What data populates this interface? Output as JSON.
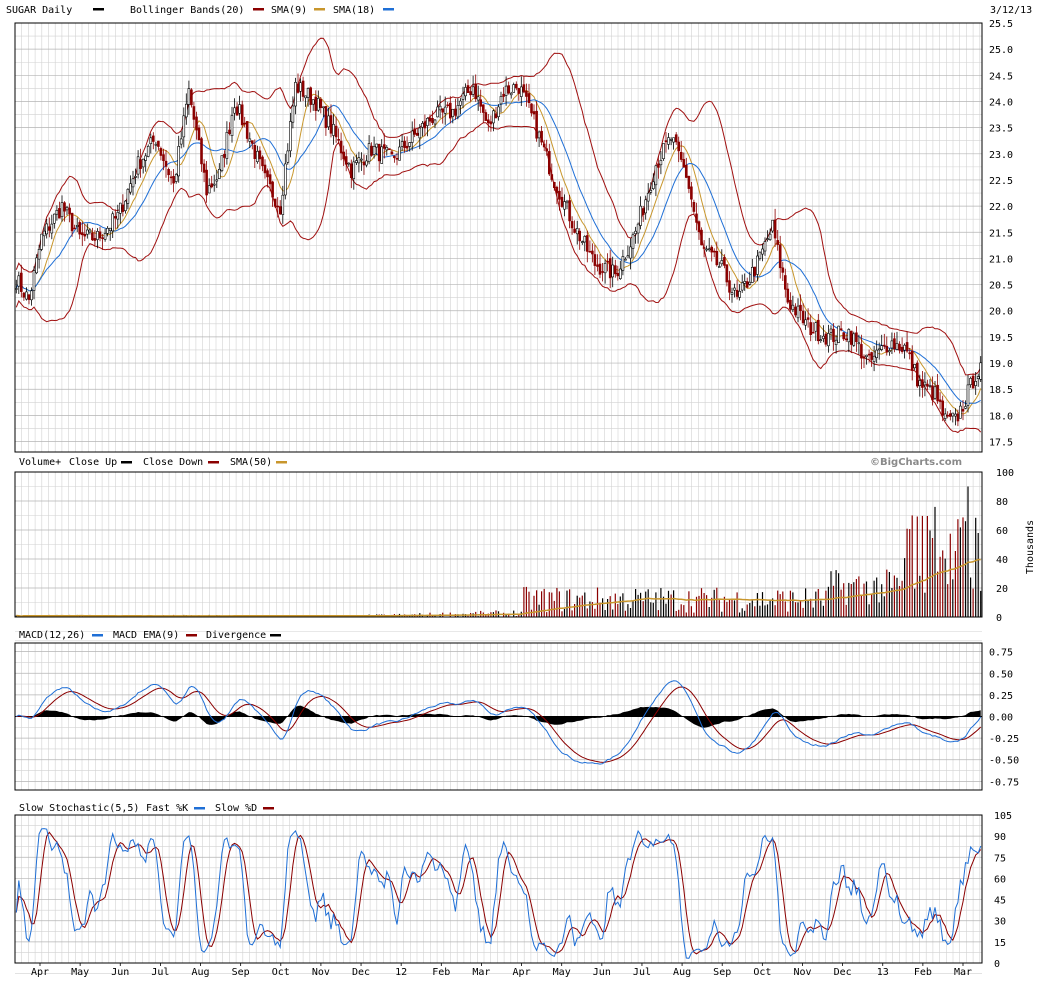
{
  "header": {
    "symbol_label": "SUGAR Daily",
    "date": "3/12/13",
    "bollinger_label": "Bollinger Bands(20)",
    "sma9_label": "SMA(9)",
    "sma18_label": "SMA(18)"
  },
  "volume_header": {
    "label": "Volume+",
    "close_up_label": "Close Up",
    "close_down_label": "Close Down",
    "sma50_label": "SMA(50)",
    "watermark": "©BigCharts.com",
    "unit_label": "Thousands"
  },
  "macd_header": {
    "label": "MACD(12,26)",
    "ema_label": "MACD EMA(9)",
    "divergence_label": "Divergence"
  },
  "stoch_header": {
    "label": "Slow Stochastic(5,5)",
    "fast_label": "Fast %K",
    "slow_label": "Slow %D"
  },
  "colors": {
    "up": "#000000",
    "down": "#8b0000",
    "bollinger": "#a01010",
    "sma9": "#c8962c",
    "sma18": "#1f6fd6",
    "grid": "#b4b4b4",
    "minor_grid": "#d2d2d2"
  },
  "chart_data": [
    {
      "type": "candlestick",
      "title": "SUGAR Daily",
      "ylim": [
        17.3,
        25.5
      ],
      "y_ticks": [
        "25.5",
        "25.0",
        "24.5",
        "24.0",
        "23.5",
        "23.0",
        "22.5",
        "22.0",
        "21.5",
        "21.0",
        "20.5",
        "20.0",
        "19.5",
        "19.0",
        "18.5",
        "18.0",
        "17.5"
      ],
      "x_ticks": [
        "Apr",
        "May",
        "Jun",
        "Jul",
        "Aug",
        "Sep",
        "Oct",
        "Nov",
        "Dec",
        "12",
        "Feb",
        "Mar",
        "Apr",
        "May",
        "Jun",
        "Jul",
        "Aug",
        "Sep",
        "Oct",
        "Nov",
        "Dec",
        "13",
        "Feb",
        "Mar"
      ],
      "close_keypoints": [
        [
          0,
          20.6
        ],
        [
          5,
          20.2
        ],
        [
          10,
          21.4
        ],
        [
          18,
          22.0
        ],
        [
          25,
          21.4
        ],
        [
          32,
          21.4
        ],
        [
          40,
          21.8
        ],
        [
          48,
          22.8
        ],
        [
          55,
          23.3
        ],
        [
          62,
          22.4
        ],
        [
          68,
          24.2
        ],
        [
          75,
          22.3
        ],
        [
          80,
          22.6
        ],
        [
          86,
          24.0
        ],
        [
          92,
          23.3
        ],
        [
          98,
          22.5
        ],
        [
          104,
          22.0
        ],
        [
          110,
          24.3
        ],
        [
          118,
          24.0
        ],
        [
          124,
          23.5
        ],
        [
          132,
          22.7
        ],
        [
          140,
          23.1
        ],
        [
          148,
          22.9
        ],
        [
          156,
          23.3
        ],
        [
          164,
          23.7
        ],
        [
          172,
          23.8
        ],
        [
          180,
          24.3
        ],
        [
          186,
          23.5
        ],
        [
          192,
          24.2
        ],
        [
          198,
          24.3
        ],
        [
          204,
          23.6
        ],
        [
          212,
          22.5
        ],
        [
          220,
          21.6
        ],
        [
          228,
          20.9
        ],
        [
          236,
          20.7
        ],
        [
          244,
          21.5
        ],
        [
          252,
          22.8
        ],
        [
          258,
          23.3
        ],
        [
          264,
          22.6
        ],
        [
          270,
          21.2
        ],
        [
          278,
          20.8
        ],
        [
          284,
          20.2
        ],
        [
          292,
          20.9
        ],
        [
          298,
          21.6
        ],
        [
          304,
          20.2
        ],
        [
          312,
          19.7
        ],
        [
          320,
          19.5
        ],
        [
          328,
          19.6
        ],
        [
          336,
          19.0
        ],
        [
          344,
          19.4
        ],
        [
          350,
          19.3
        ],
        [
          356,
          18.6
        ],
        [
          362,
          18.4
        ],
        [
          366,
          17.9
        ],
        [
          370,
          17.9
        ],
        [
          374,
          18.3
        ],
        [
          378,
          18.8
        ],
        [
          380,
          18.85
        ]
      ],
      "bollinger_label": "Bollinger Bands(20)",
      "overlays": [
        "SMA(9)",
        "SMA(18)"
      ]
    },
    {
      "type": "bar",
      "title": "Volume+",
      "unit": "Thousands",
      "ylim": [
        0,
        100
      ],
      "y_ticks": [
        "100",
        "80",
        "60",
        "40",
        "20",
        "0"
      ],
      "series_names": [
        "Close Up",
        "Close Down",
        "SMA(50)"
      ],
      "max_value": 90
    },
    {
      "type": "line",
      "title": "MACD(12,26)",
      "ylim": [
        -0.85,
        0.85
      ],
      "y_ticks": [
        "0.75",
        "0.50",
        "0.25",
        "0.00",
        "-0.25",
        "-0.50",
        "-0.75"
      ],
      "series_names": [
        "MACD(12,26)",
        "MACD EMA(9)",
        "Divergence"
      ],
      "range_observed": [
        -0.55,
        0.52
      ]
    },
    {
      "type": "line",
      "title": "Slow Stochastic(5,5)",
      "ylim": [
        0,
        105
      ],
      "y_ticks": [
        "105",
        "90",
        "75",
        "60",
        "45",
        "30",
        "15",
        "0"
      ],
      "series_names": [
        "Fast %K",
        "Slow %D"
      ]
    }
  ]
}
